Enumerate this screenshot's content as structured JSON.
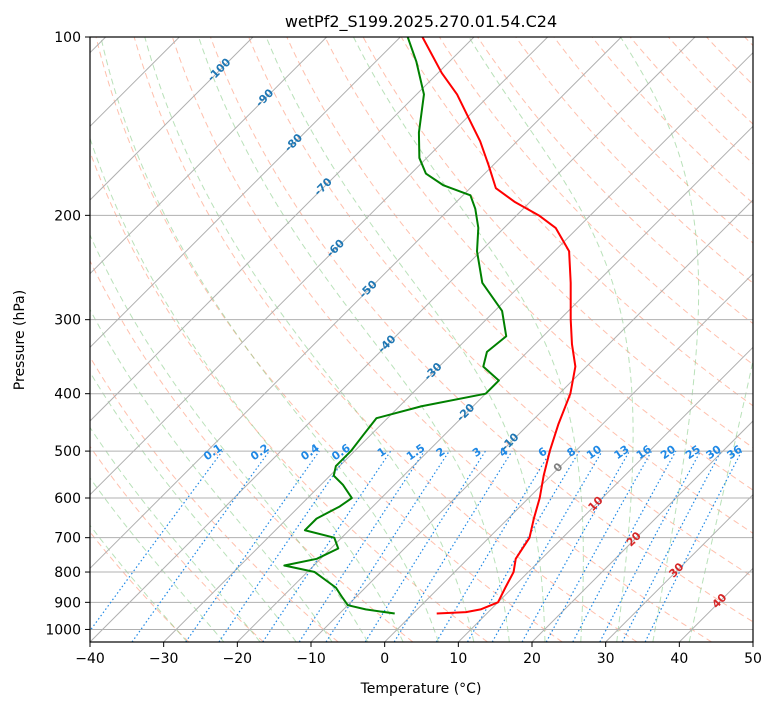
{
  "chart_data": {
    "type": "line",
    "title": "wetPf2_S199.2025.270.01.54.C24",
    "xlabel": "Temperature (°C)",
    "ylabel": "Pressure (hPa)",
    "xlim": [
      -40,
      50
    ],
    "ylim": [
      1050,
      100
    ],
    "y_scale": "log",
    "grid": true,
    "x_ticks": [
      -40,
      -30,
      -20,
      -10,
      0,
      10,
      20,
      30,
      40,
      50
    ],
    "y_ticks": [
      100,
      200,
      300,
      400,
      500,
      600,
      700,
      800,
      900,
      1000
    ],
    "skew": true,
    "series": [
      {
        "role": "temperature",
        "color": "#ff0000",
        "points": [
          {
            "p": 940,
            "t": 3.2
          },
          {
            "p": 935,
            "t": 7.0
          },
          {
            "p": 925,
            "t": 8.6
          },
          {
            "p": 900,
            "t": 10.0
          },
          {
            "p": 850,
            "t": 9.0
          },
          {
            "p": 800,
            "t": 8.0
          },
          {
            "p": 760,
            "t": 6.5
          },
          {
            "p": 700,
            "t": 5.5
          },
          {
            "p": 650,
            "t": 3.5
          },
          {
            "p": 600,
            "t": 1.5
          },
          {
            "p": 550,
            "t": -1.0
          },
          {
            "p": 500,
            "t": -3.5
          },
          {
            "p": 450,
            "t": -6.0
          },
          {
            "p": 400,
            "t": -8.5
          },
          {
            "p": 360,
            "t": -11.5
          },
          {
            "p": 330,
            "t": -15.0
          },
          {
            "p": 300,
            "t": -18.5
          },
          {
            "p": 260,
            "t": -23.5
          },
          {
            "p": 230,
            "t": -28.0
          },
          {
            "p": 210,
            "t": -33.0
          },
          {
            "p": 200,
            "t": -37.0
          },
          {
            "p": 190,
            "t": -42.0
          },
          {
            "p": 180,
            "t": -46.5
          },
          {
            "p": 165,
            "t": -50.5
          },
          {
            "p": 150,
            "t": -55.0
          },
          {
            "p": 135,
            "t": -60.5
          },
          {
            "p": 125,
            "t": -64.5
          },
          {
            "p": 115,
            "t": -69.5
          },
          {
            "p": 100,
            "t": -77.0
          }
        ]
      },
      {
        "role": "dewpoint",
        "color": "#008000",
        "points": [
          {
            "p": 940,
            "t": -2.5
          },
          {
            "p": 925,
            "t": -7.0
          },
          {
            "p": 910,
            "t": -10.0
          },
          {
            "p": 880,
            "t": -12.0
          },
          {
            "p": 850,
            "t": -14.0
          },
          {
            "p": 800,
            "t": -19.0
          },
          {
            "p": 780,
            "t": -24.0
          },
          {
            "p": 760,
            "t": -20.5
          },
          {
            "p": 730,
            "t": -19.0
          },
          {
            "p": 700,
            "t": -21.0
          },
          {
            "p": 680,
            "t": -26.0
          },
          {
            "p": 650,
            "t": -26.0
          },
          {
            "p": 620,
            "t": -24.5
          },
          {
            "p": 600,
            "t": -24.0
          },
          {
            "p": 570,
            "t": -27.0
          },
          {
            "p": 550,
            "t": -29.5
          },
          {
            "p": 530,
            "t": -30.5
          },
          {
            "p": 500,
            "t": -30.5
          },
          {
            "p": 470,
            "t": -31.0
          },
          {
            "p": 440,
            "t": -31.5
          },
          {
            "p": 420,
            "t": -27.0
          },
          {
            "p": 400,
            "t": -20.0
          },
          {
            "p": 380,
            "t": -20.0
          },
          {
            "p": 360,
            "t": -24.0
          },
          {
            "p": 340,
            "t": -25.5
          },
          {
            "p": 320,
            "t": -25.0
          },
          {
            "p": 290,
            "t": -29.0
          },
          {
            "p": 260,
            "t": -35.5
          },
          {
            "p": 230,
            "t": -40.5
          },
          {
            "p": 210,
            "t": -43.5
          },
          {
            "p": 195,
            "t": -46.5
          },
          {
            "p": 185,
            "t": -49.0
          },
          {
            "p": 178,
            "t": -54.0
          },
          {
            "p": 170,
            "t": -58.0
          },
          {
            "p": 160,
            "t": -61.0
          },
          {
            "p": 145,
            "t": -64.5
          },
          {
            "p": 125,
            "t": -69.0
          },
          {
            "p": 110,
            "t": -74.5
          },
          {
            "p": 100,
            "t": -79.0
          }
        ]
      }
    ],
    "isotherm_labels": [
      "-100",
      "-90",
      "-80",
      "-70",
      "-60",
      "-50",
      "-40",
      "-30",
      "-20",
      "-10"
    ],
    "isotherm_labels_warm": [
      "0",
      "10",
      "20",
      "30",
      "40"
    ],
    "mixing_ratio_labels": [
      "0.1",
      "0.2",
      "0.4",
      "0.6",
      "1",
      "1.5",
      "2",
      "3",
      "4",
      "6",
      "8",
      "10",
      "13",
      "16",
      "20",
      "25",
      "30",
      "36"
    ],
    "colors": {
      "temperature": "#ff0000",
      "dewpoint": "#008000",
      "isotherm_label_cold": "#1f77b4",
      "isotherm_label_zero": "#808080",
      "isotherm_label_warm": "#d62728",
      "mixing_ratio": "#1e88e5",
      "dry_adiabat": "#ff8c69",
      "moist_adiabat": "#7fc97f",
      "grid": "#b0b0b0"
    }
  }
}
